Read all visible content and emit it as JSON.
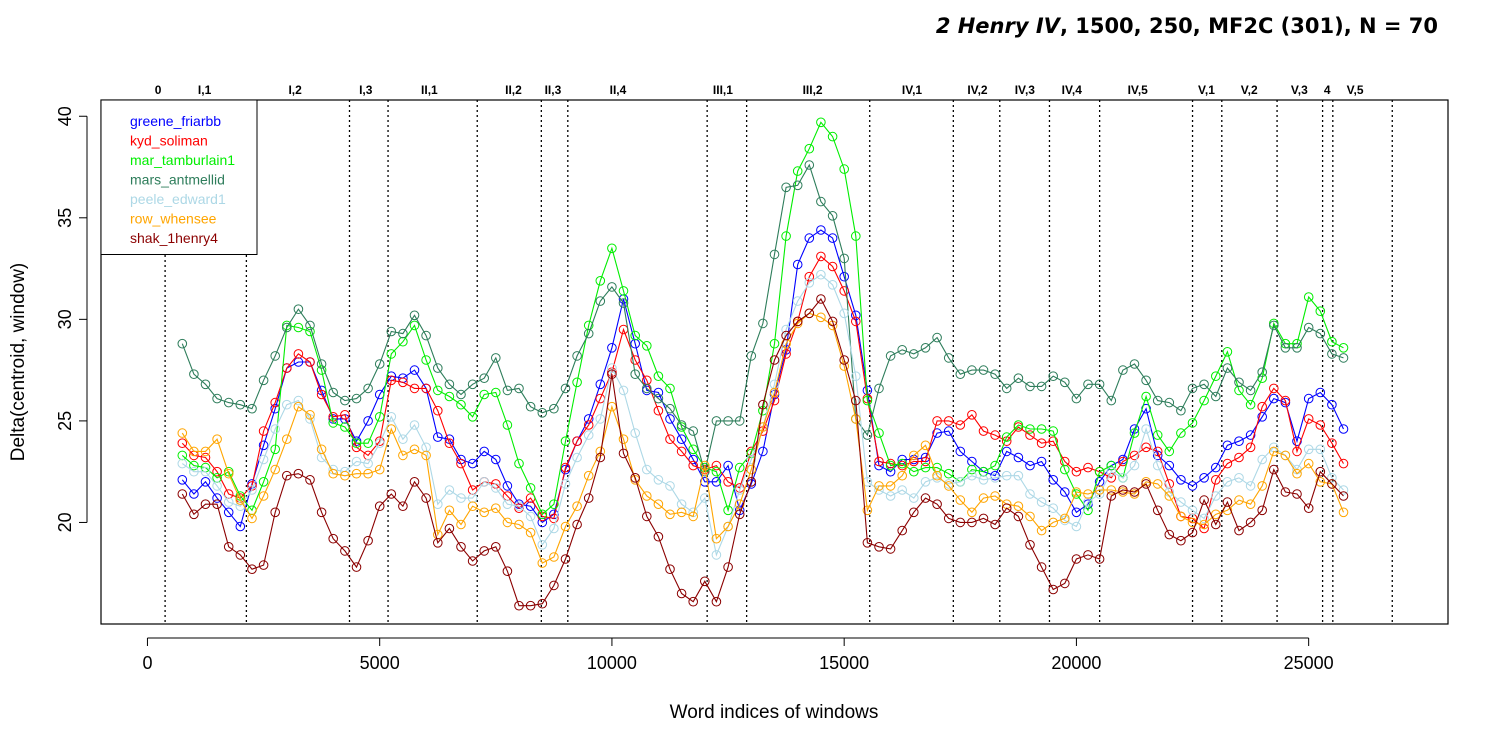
{
  "chart_data": {
    "type": "line",
    "title_work": "2 Henry IV",
    "title_rest": ", 1500, 250, MF2C (301), N = 70",
    "xlabel": "Word indices of windows",
    "ylabel": "Delta(centroid, window)",
    "xlim": [
      -1000,
      28000
    ],
    "ylim": [
      15,
      40.8
    ],
    "xticks": [
      0,
      5000,
      10000,
      15000,
      20000,
      25000
    ],
    "yticks": [
      20,
      25,
      30,
      35,
      40
    ],
    "grid": false,
    "legend_position": "top-left",
    "act_boundaries": [
      380,
      2130,
      4350,
      5180,
      7100,
      8480,
      9050,
      12050,
      12900,
      15550,
      17350,
      18350,
      19420,
      20500,
      22500,
      23130,
      24320,
      25300,
      25520,
      26800
    ],
    "act_labels": [
      {
        "label": "0",
        "x": 230
      },
      {
        "label": "I,1",
        "x": 1230
      },
      {
        "label": "I,2",
        "x": 3180
      },
      {
        "label": "I,3",
        "x": 4700
      },
      {
        "label": "II,1",
        "x": 6070
      },
      {
        "label": "II,2",
        "x": 7880
      },
      {
        "label": "II,3",
        "x": 8730
      },
      {
        "label": "II,4",
        "x": 10130
      },
      {
        "label": "III,1",
        "x": 12390
      },
      {
        "label": "III,2",
        "x": 14320
      },
      {
        "label": "IV,1",
        "x": 16460
      },
      {
        "label": "IV,2",
        "x": 17870
      },
      {
        "label": "IV,3",
        "x": 18890
      },
      {
        "label": "IV,4",
        "x": 19900
      },
      {
        "label": "IV,5",
        "x": 21320
      },
      {
        "label": "V,1",
        "x": 22800
      },
      {
        "label": "V,2",
        "x": 23720
      },
      {
        "label": "V,3",
        "x": 24800
      },
      {
        "label": "4",
        "x": 25400
      },
      {
        "label": "V,5",
        "x": 26000
      }
    ],
    "x": [
      750,
      1000,
      1250,
      1500,
      1750,
      2000,
      2250,
      2500,
      2750,
      3000,
      3250,
      3500,
      3750,
      4000,
      4250,
      4500,
      4750,
      5000,
      5250,
      5500,
      5750,
      6000,
      6250,
      6500,
      6750,
      7000,
      7250,
      7500,
      7750,
      8000,
      8250,
      8500,
      8750,
      9000,
      9250,
      9500,
      9750,
      10000,
      10250,
      10500,
      10750,
      11000,
      11250,
      11500,
      11750,
      12000,
      12250,
      12500,
      12750,
      13000,
      13250,
      13500,
      13750,
      14000,
      14250,
      14500,
      14750,
      15000,
      15250,
      15500,
      15750,
      16000,
      16250,
      16500,
      16750,
      17000,
      17250,
      17500,
      17750,
      18000,
      18250,
      18500,
      18750,
      19000,
      19250,
      19500,
      19750,
      20000,
      20250,
      20500,
      20750,
      21000,
      21250,
      21500,
      21750,
      22000,
      22250,
      22500,
      22750,
      23000,
      23250,
      23500,
      23750,
      24000,
      24250,
      24500,
      24750,
      25000,
      25250,
      25500,
      25750
    ],
    "series": [
      {
        "name": "greene_friarbb",
        "color": "#0000ff",
        "values": [
          22.1,
          21.4,
          22.0,
          21.2,
          20.5,
          19.8,
          21.9,
          23.8,
          25.6,
          27.6,
          27.9,
          27.9,
          26.5,
          25.1,
          25.1,
          24.0,
          25.0,
          26.3,
          27.2,
          27.1,
          27.5,
          26.6,
          24.2,
          24.1,
          23.1,
          22.9,
          23.5,
          23.1,
          21.8,
          20.9,
          20.8,
          20.0,
          20.4,
          22.6,
          24.0,
          25.1,
          26.8,
          28.6,
          31.0,
          28.8,
          26.5,
          26.4,
          25.1,
          24.1,
          23.1,
          22.0,
          22.0,
          22.8,
          20.6,
          21.9,
          23.5,
          26.3,
          28.5,
          32.7,
          34.0,
          34.4,
          34.0,
          32.1,
          30.2,
          26.5,
          22.8,
          22.5,
          23.1,
          23.1,
          23.2,
          24.4,
          24.5,
          23.5,
          23.0,
          22.5,
          22.3,
          23.5,
          23.2,
          22.8,
          23.0,
          22.1,
          21.5,
          20.5,
          20.9,
          22.0,
          22.8,
          23.1,
          24.6,
          25.6,
          23.3,
          22.8,
          22.1,
          21.8,
          22.2,
          22.7,
          23.8,
          24.0,
          24.3,
          25.2,
          26.1,
          25.9,
          24.0,
          26.1,
          26.4,
          25.8,
          24.6
        ]
      },
      {
        "name": "kyd_soliman",
        "color": "#ff0000",
        "values": [
          23.9,
          23.3,
          23.2,
          22.5,
          21.4,
          21.2,
          21.8,
          24.5,
          25.9,
          27.6,
          28.3,
          27.9,
          26.3,
          25.2,
          25.3,
          23.7,
          23.3,
          24.0,
          27.0,
          26.9,
          26.6,
          26.6,
          25.5,
          23.9,
          22.9,
          21.6,
          22.0,
          21.9,
          21.3,
          20.7,
          21.2,
          20.3,
          20.2,
          22.7,
          24.0,
          24.8,
          26.1,
          27.4,
          29.5,
          28.0,
          27.0,
          25.5,
          24.1,
          23.5,
          22.8,
          22.6,
          22.8,
          22.0,
          21.7,
          23.5,
          24.5,
          26.0,
          28.3,
          29.9,
          32.1,
          33.1,
          32.6,
          31.4,
          29.9,
          26.1,
          23.0,
          22.9,
          22.8,
          23.0,
          23.0,
          25.0,
          25.0,
          24.8,
          25.3,
          24.5,
          24.3,
          24.0,
          24.7,
          24.3,
          23.9,
          24.0,
          23.0,
          22.5,
          22.7,
          22.5,
          22.2,
          23.0,
          23.3,
          23.7,
          23.5,
          21.9,
          20.3,
          20.2,
          19.7,
          22.1,
          22.9,
          23.2,
          23.7,
          25.7,
          26.6,
          26.0,
          23.5,
          25.1,
          24.8,
          23.9,
          22.9
        ]
      },
      {
        "name": "mar_tamburlain1",
        "color": "#00ee00",
        "values": [
          23.3,
          22.8,
          22.7,
          22.2,
          22.5,
          21.3,
          20.6,
          22.0,
          23.6,
          29.7,
          29.6,
          29.4,
          27.5,
          24.9,
          24.7,
          23.9,
          23.9,
          25.2,
          28.3,
          28.9,
          29.7,
          28.0,
          26.5,
          26.2,
          25.8,
          25.2,
          26.3,
          26.4,
          24.8,
          22.9,
          21.7,
          20.4,
          20.9,
          24.0,
          26.9,
          29.7,
          31.9,
          33.5,
          31.4,
          29.2,
          28.7,
          27.2,
          26.6,
          24.7,
          23.6,
          22.7,
          22.5,
          20.6,
          22.7,
          23.4,
          25.5,
          28.8,
          34.1,
          37.3,
          38.4,
          39.7,
          39.0,
          37.4,
          34.1,
          26.0,
          24.4,
          22.8,
          22.9,
          22.5,
          22.7,
          22.7,
          22.4,
          22.0,
          22.6,
          22.5,
          22.8,
          24.2,
          24.8,
          24.6,
          24.6,
          24.5,
          22.6,
          21.4,
          20.6,
          22.5,
          22.8,
          22.2,
          24.4,
          26.2,
          24.3,
          23.5,
          24.4,
          24.9,
          26.0,
          27.2,
          28.4,
          26.5,
          25.8,
          27.1,
          29.8,
          28.8,
          28.8,
          31.1,
          30.4,
          28.9,
          28.6
        ]
      },
      {
        "name": "mars_antmellid",
        "color": "#2e7d5b",
        "values": [
          28.8,
          27.3,
          26.8,
          26.1,
          25.9,
          25.8,
          25.6,
          27.0,
          28.2,
          29.6,
          30.5,
          29.7,
          27.8,
          26.4,
          26.0,
          26.1,
          26.6,
          27.8,
          29.4,
          29.3,
          30.2,
          29.2,
          27.6,
          26.8,
          26.3,
          26.8,
          27.1,
          28.1,
          26.5,
          26.6,
          25.7,
          25.4,
          25.6,
          26.6,
          28.2,
          29.3,
          30.9,
          31.6,
          30.8,
          27.3,
          26.6,
          26.1,
          25.6,
          24.8,
          24.5,
          22.5,
          25.0,
          25.0,
          25.0,
          28.2,
          29.8,
          33.2,
          36.5,
          36.6,
          37.6,
          35.8,
          35.1,
          33.0,
          25.1,
          24.3,
          26.6,
          28.2,
          28.5,
          28.3,
          28.6,
          29.1,
          28.1,
          27.3,
          27.5,
          27.5,
          27.3,
          26.6,
          27.1,
          26.7,
          26.7,
          27.2,
          26.9,
          26.1,
          26.8,
          26.8,
          26.0,
          27.5,
          27.8,
          27.0,
          26.0,
          25.9,
          25.5,
          26.6,
          26.8,
          26.2,
          27.6,
          26.9,
          26.5,
          27.4,
          29.7,
          28.6,
          28.6,
          29.6,
          29.3,
          28.3,
          28.1
        ]
      },
      {
        "name": "peele_edward1",
        "color": "#add8e6",
        "values": [
          22.9,
          22.5,
          22.5,
          21.8,
          21.0,
          20.8,
          21.6,
          23.1,
          24.6,
          25.8,
          26.0,
          25.1,
          23.2,
          22.6,
          22.5,
          23.0,
          22.9,
          23.9,
          25.2,
          24.1,
          24.8,
          23.7,
          20.9,
          21.6,
          21.2,
          21.2,
          22.0,
          21.7,
          20.9,
          20.8,
          20.3,
          18.9,
          19.7,
          21.9,
          23.2,
          24.3,
          25.1,
          27.6,
          26.5,
          24.4,
          22.6,
          22.1,
          21.8,
          20.9,
          20.5,
          21.2,
          18.4,
          19.8,
          21.6,
          23.1,
          24.7,
          26.8,
          29.5,
          30.9,
          31.8,
          32.2,
          31.7,
          30.3,
          27.2,
          22.0,
          21.6,
          21.3,
          21.6,
          21.2,
          22.0,
          22.2,
          21.9,
          22.0,
          22.3,
          22.1,
          22.2,
          22.3,
          22.3,
          21.4,
          21.0,
          20.7,
          20.1,
          19.8,
          21.0,
          21.4,
          22.5,
          22.2,
          22.8,
          24.6,
          22.8,
          21.5,
          21.0,
          20.6,
          20.2,
          21.3,
          22.0,
          22.2,
          21.8,
          23.1,
          23.7,
          23.3,
          22.6,
          23.6,
          23.6,
          22.2,
          21.6
        ]
      },
      {
        "name": "row_whensee",
        "color": "#ffa500",
        "values": [
          24.4,
          23.5,
          23.5,
          24.1,
          22.4,
          21.1,
          20.2,
          21.3,
          22.6,
          24.1,
          25.7,
          25.3,
          23.6,
          22.4,
          22.3,
          22.4,
          22.4,
          22.6,
          24.6,
          23.3,
          23.6,
          23.3,
          19.4,
          20.6,
          19.9,
          20.8,
          20.5,
          20.7,
          20.0,
          19.9,
          19.5,
          18.0,
          18.3,
          19.8,
          20.8,
          22.3,
          23.5,
          25.7,
          24.1,
          22.1,
          21.3,
          20.9,
          20.4,
          20.5,
          20.3,
          22.8,
          19.2,
          19.8,
          20.9,
          22.6,
          24.7,
          26.4,
          28.8,
          29.8,
          30.3,
          30.1,
          29.7,
          27.7,
          25.1,
          20.6,
          21.8,
          21.8,
          22.3,
          23.3,
          23.8,
          22.3,
          21.8,
          21.1,
          20.5,
          21.2,
          21.3,
          20.9,
          20.8,
          20.3,
          19.6,
          20.0,
          20.2,
          21.5,
          21.4,
          21.6,
          21.6,
          21.5,
          21.4,
          22.0,
          21.9,
          21.3,
          20.3,
          20.0,
          19.9,
          20.4,
          20.6,
          21.1,
          20.9,
          21.8,
          23.5,
          23.3,
          22.4,
          22.9,
          22.0,
          21.9,
          20.5
        ]
      },
      {
        "name": "shak_1henry4",
        "color": "#8b0000",
        "values": [
          21.4,
          20.4,
          20.9,
          20.9,
          18.8,
          18.4,
          17.7,
          17.9,
          20.5,
          22.3,
          22.4,
          22.1,
          20.5,
          19.2,
          18.6,
          17.8,
          19.1,
          20.8,
          21.4,
          20.8,
          22.0,
          21.2,
          19.0,
          19.7,
          18.8,
          18.1,
          18.6,
          18.8,
          17.6,
          15.9,
          15.9,
          16.0,
          16.9,
          18.2,
          19.9,
          21.2,
          23.2,
          27.3,
          23.4,
          22.2,
          20.3,
          19.3,
          17.7,
          16.5,
          16.1,
          17.1,
          16.1,
          17.8,
          20.4,
          22.0,
          25.8,
          28.0,
          29.2,
          29.9,
          30.3,
          31.0,
          29.9,
          28.0,
          26.0,
          19.0,
          18.8,
          18.7,
          19.6,
          20.5,
          21.2,
          20.9,
          20.2,
          20.0,
          20.0,
          20.2,
          19.9,
          20.7,
          20.3,
          18.9,
          17.8,
          16.7,
          17.0,
          18.2,
          18.4,
          18.2,
          21.3,
          21.6,
          21.5,
          21.9,
          20.6,
          19.4,
          19.1,
          19.5,
          21.1,
          19.9,
          21.0,
          19.6,
          20.0,
          20.6,
          22.6,
          21.5,
          21.4,
          20.7,
          22.5,
          21.9,
          21.3
        ]
      }
    ]
  }
}
